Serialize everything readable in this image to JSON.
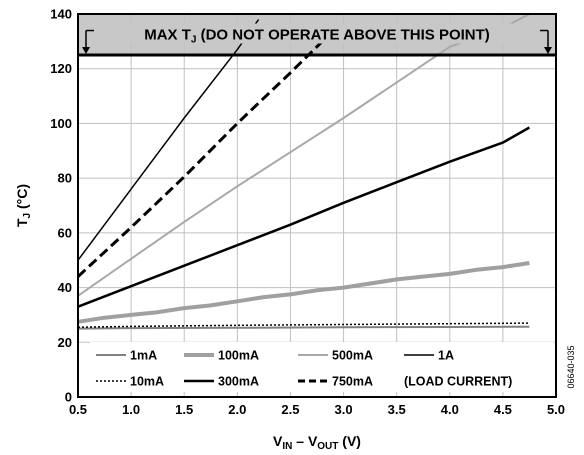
{
  "chart_data": {
    "type": "line",
    "xlabel": "V",
    "xlabel_sub1": "IN",
    "xlabel_mid": " – V",
    "xlabel_sub2": "OUT",
    "xlabel_unit": " (V)",
    "ylabel": "T",
    "ylabel_sub": "J",
    "ylabel_unit": " (°C)",
    "xlim": [
      0.5,
      5.0
    ],
    "ylim": [
      0,
      140
    ],
    "xticks": [
      0.5,
      1.0,
      1.5,
      2.0,
      2.5,
      3.0,
      3.5,
      4.0,
      4.5,
      5.0
    ],
    "xtick_labels": [
      "0.5",
      "1.0",
      "1.5",
      "2.0",
      "2.5",
      "3.0",
      "3.5",
      "4.0",
      "4.5",
      "5.0"
    ],
    "yticks": [
      0,
      20,
      40,
      60,
      80,
      100,
      120,
      140
    ],
    "ytick_labels": [
      "0",
      "20",
      "40",
      "60",
      "80",
      "100",
      "120",
      "140"
    ],
    "grid": true,
    "max_region": {
      "y_from": 125,
      "y_to": 140,
      "label_pre": "MAX T",
      "label_sub": "J",
      "label_post": " (DO NOT OPERATE ABOVE THIS POINT)",
      "color": "#c8c8c8"
    },
    "series": [
      {
        "name": "1mA",
        "color": "#808080",
        "style": "solid",
        "width": 2.0,
        "x": [
          0.5,
          1.0,
          2.0,
          3.0,
          4.0,
          4.75
        ],
        "y": [
          25.0,
          25.2,
          25.3,
          25.5,
          25.6,
          25.7
        ]
      },
      {
        "name": "10mA",
        "color": "#000000",
        "style": "dotted",
        "width": 1.5,
        "x": [
          0.5,
          1.0,
          2.0,
          3.0,
          4.0,
          4.75
        ],
        "y": [
          25.5,
          25.8,
          26.2,
          26.5,
          26.8,
          27.0
        ]
      },
      {
        "name": "100mA",
        "color": "#a0a0a0",
        "style": "solid",
        "width": 4.0,
        "x": [
          0.5,
          0.75,
          1.0,
          1.25,
          1.5,
          1.75,
          2.0,
          2.25,
          2.5,
          2.75,
          3.0,
          3.25,
          3.5,
          3.75,
          4.0,
          4.25,
          4.5,
          4.75
        ],
        "y": [
          27.5,
          29.0,
          30.0,
          31.0,
          32.5,
          33.5,
          35.0,
          36.5,
          37.5,
          39.0,
          40.0,
          41.5,
          43.0,
          44.0,
          45.0,
          46.5,
          47.5,
          49.0
        ]
      },
      {
        "name": "300mA",
        "color": "#000000",
        "style": "solid",
        "width": 2.5,
        "x": [
          0.5,
          1.0,
          1.5,
          2.0,
          2.5,
          3.0,
          3.5,
          4.0,
          4.5,
          4.75
        ],
        "y": [
          33.0,
          40.5,
          48.0,
          55.5,
          63.0,
          71.0,
          78.5,
          86.0,
          93.0,
          98.5
        ]
      },
      {
        "name": "500mA",
        "color": "#a8a8a8",
        "style": "solid",
        "width": 2.0,
        "x": [
          0.5,
          1.0,
          1.5,
          2.0,
          2.5,
          3.0,
          3.5,
          4.0,
          4.5,
          4.75
        ],
        "y": [
          37.0,
          50.5,
          64.0,
          77.0,
          89.5,
          102.0,
          115.0,
          128.0,
          135.0,
          140.0
        ]
      },
      {
        "name": "750mA",
        "color": "#000000",
        "style": "dashed",
        "width": 3.0,
        "x": [
          0.5,
          1.0,
          1.5,
          2.0,
          2.5,
          2.8
        ],
        "y": [
          44.0,
          62.0,
          80.5,
          100.0,
          118.5,
          130.0
        ]
      },
      {
        "name": "1A",
        "color": "#000000",
        "style": "solid",
        "width": 1.5,
        "x": [
          0.5,
          1.0,
          1.5,
          2.0,
          2.2
        ],
        "y": [
          50.0,
          76.0,
          102.0,
          127.0,
          138.0
        ]
      }
    ],
    "legend": {
      "placement": "bottom-left inside plot",
      "rows": [
        [
          "1mA",
          "100mA",
          "500mA",
          "1A"
        ],
        [
          "10mA",
          "300mA",
          "750mA",
          "(LOAD CURRENT)"
        ]
      ],
      "note": "(LOAD CURRENT)"
    },
    "figure_id": "06640-035"
  }
}
